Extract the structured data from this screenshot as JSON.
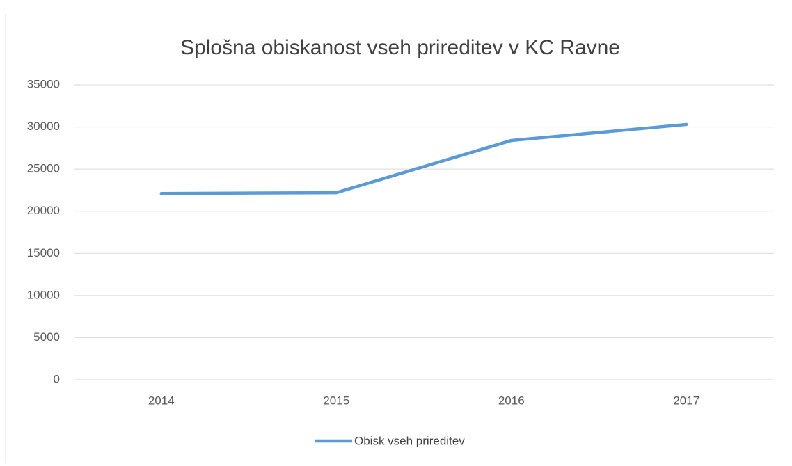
{
  "chart_data": {
    "type": "line",
    "title": "Splošna obiskanost vseh prireditev v KC Ravne",
    "categories": [
      "2014",
      "2015",
      "2016",
      "2017"
    ],
    "series": [
      {
        "name": "Obisk vseh prireditev",
        "color": "#5b9bd5",
        "values": [
          22100,
          22200,
          28400,
          30300
        ]
      }
    ],
    "ylim": [
      0,
      35000
    ],
    "yticks": [
      0,
      5000,
      10000,
      15000,
      20000,
      25000,
      30000,
      35000
    ],
    "grid": true,
    "legend": "bottom"
  }
}
